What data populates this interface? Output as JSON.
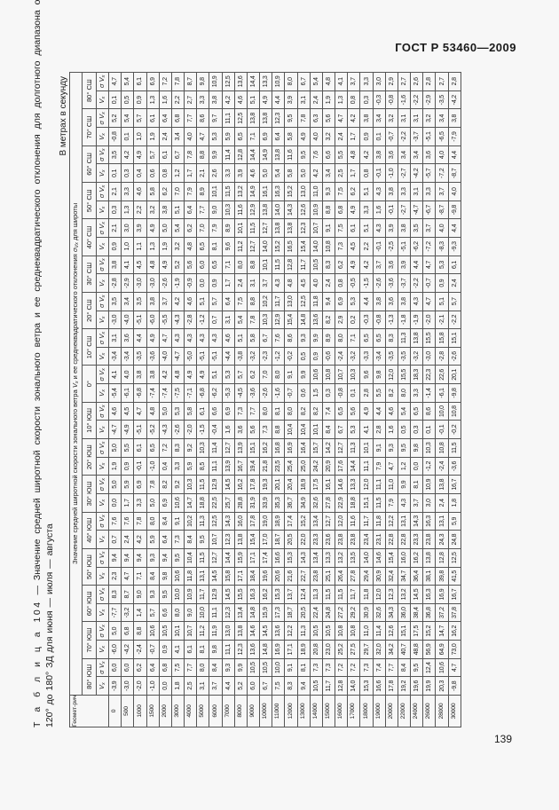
{
  "doc_code": "ГОСТ Р 53460—2009",
  "page_number": "139",
  "table": {
    "title_label": "Т а б л и ц а 104",
    "title_line1": "— Значение средней широтной скорости зонального ветра и ее среднеквадратического отклонения для долготного диапазона от",
    "title_line2": "120° до 180° ЗД для июня — июля — августа",
    "units": "В метрах в секунду",
    "height_header": "Геомет-рическая высота, м",
    "group_header": {
      "part1": "Значение средней широтной скорости зонального ветра ",
      "vx": "V",
      "vx_sub": "x",
      "part2": " и ее среднеквадратического отклонения ",
      "sigma": "σ",
      "sigma_v": "V",
      "sigma_sub": "x",
      "part3": " для широты"
    },
    "sub_headers": {
      "vx": "V",
      "vx_sub": "x",
      "sigma": "σ V",
      "sigma_sub": "x"
    },
    "heights": [
      "0",
      "500",
      "1000",
      "1500",
      "2000",
      "3000",
      "4000",
      "5000",
      "6000",
      "7000",
      "8000",
      "9000",
      "10000",
      "11000",
      "12000",
      "13000",
      "14000",
      "15000",
      "16000",
      "17000",
      "18000",
      "19000",
      "20000",
      "22000",
      "24000",
      "26000",
      "28000",
      "30000"
    ],
    "columns": [
      {
        "latitude": "80° ЮШ",
        "vx": [
          -3.9,
          -3.0,
          -2.0,
          -1.0,
          0.0,
          1.8,
          2.5,
          3.1,
          3.7,
          4.4,
          5.2,
          6.0,
          6.7,
          7.5,
          8.3,
          9.4,
          10.5,
          11.7,
          12.8,
          14.0,
          15.3,
          16.6,
          17.8,
          19.2,
          19.6,
          19.9,
          20.3,
          -9.8
        ],
        "sigma": [
          6.0,
          6.0,
          6.2,
          6.4,
          6.8,
          7.5,
          7.7,
          8.0,
          8.4,
          9.3,
          9.9,
          10.5,
          10.5,
          10.0,
          9.1,
          8.1,
          7.3,
          7.3,
          7.2,
          7.2,
          7.3,
          7.4,
          7.7,
          8.4,
          9.5,
          12.4,
          10.6,
          4.7
        ]
      },
      {
        "latitude": "70° ЮШ",
        "vx": [
          -6.0,
          -4.2,
          -2.4,
          -0.7,
          0.9,
          4.1,
          6.1,
          8.1,
          9.8,
          11.1,
          12.3,
          13.6,
          14.8,
          16.9,
          17.1,
          18.9,
          20.8,
          23.0,
          25.2,
          27.5,
          29.7,
          32.0,
          34.2,
          40.7,
          48.8,
          56.9,
          64.9,
          73.0
        ],
        "sigma": [
          5.0,
          6.8,
          8.8,
          10.6,
          10.5,
          10.1,
          10.7,
          11.2,
          11.9,
          13.0,
          13.8,
          14.6,
          14.5,
          13.6,
          12.2,
          11.3,
          10.5,
          10.5,
          10.8,
          10.8,
          11.0,
          11.4,
          12.6,
          15.1,
          17.5,
          15.2,
          14.7,
          16.2
        ]
      },
      {
        "latitude": "60° ЮШ",
        "vx": [
          -7.7,
          -3.2,
          1.4,
          5.7,
          6.6,
          8.0,
          9.0,
          10.0,
          11.1,
          12.3,
          13.4,
          14.8,
          15.9,
          17.3,
          18.7,
          20.5,
          22.4,
          24.8,
          27.2,
          29.2,
          30.9,
          32.6,
          34.3,
          36.0,
          38.4,
          36.8,
          37.2,
          37.8
        ],
        "sigma": [
          8.3,
          8.7,
          9.0,
          9.3,
          9.5,
          10.0,
          10.9,
          11.7,
          12.9,
          14.5,
          15.5,
          16.3,
          16.2,
          15.3,
          13.7,
          12.4,
          11.3,
          11.5,
          11.5,
          11.7,
          11.8,
          12.0,
          12.3,
          13.2,
          14.5,
          16.3,
          16.9,
          16.7
        ]
      },
      {
        "latitude": "50° ЮШ",
        "vx": [
          2.3,
          4.7,
          7.1,
          8.4,
          9.8,
          10.6,
          11.8,
          13.1,
          14.5,
          15.8,
          17.1,
          18.4,
          19.6,
          20.6,
          21.6,
          22.7,
          23.8,
          25.1,
          26.4,
          27.8,
          29.4,
          30.9,
          32.4,
          34.7,
          36.4,
          38.1,
          39.8,
          41.5
        ],
        "sigma": [
          9.4,
          9.4,
          9.4,
          9.3,
          9.4,
          9.5,
          10.4,
          11.5,
          12.7,
          14.4,
          15.9,
          17.1,
          17.4,
          16.6,
          15.3,
          14.3,
          13.4,
          13.3,
          13.2,
          13.5,
          14.0,
          14.6,
          15.4,
          16.0,
          16.2,
          13.8,
          12.8,
          12.5
        ]
      },
      {
        "latitude": "40° ЮШ",
        "vx": [
          0.7,
          2.4,
          4.2,
          5.9,
          6.4,
          7.3,
          8.4,
          9.5,
          10.7,
          12.3,
          13.8,
          15.4,
          17.0,
          18.7,
          20.5,
          22.0,
          23.3,
          23.6,
          23.8,
          23.8,
          23.4,
          23.1,
          22.8,
          22.8,
          23.3,
          23.8,
          24.3,
          24.8
        ],
        "sigma": [
          7.6,
          7.6,
          7.8,
          8.0,
          8.4,
          9.1,
          10.2,
          11.3,
          12.5,
          14.3,
          16.0,
          17.8,
          19.0,
          18.9,
          17.4,
          15.2,
          13.4,
          12.7,
          12.0,
          11.6,
          11.7,
          11.8,
          12.2,
          13.1,
          14.3,
          16.3,
          13.1,
          5.9
        ]
      },
      {
        "latitude": "30° ЮШ",
        "vx": [
          0.0,
          1.7,
          3.3,
          5.0,
          6.9,
          10.6,
          14.7,
          18.8,
          22.5,
          25.7,
          28.8,
          31.9,
          33.9,
          35.3,
          36.7,
          34.9,
          32.6,
          27.8,
          22.9,
          18.8,
          15.1,
          11.5,
          7.9,
          4.3,
          3.7,
          3.0,
          2.4,
          1.8
        ],
        "sigma": [
          5.0,
          5.9,
          6.9,
          7.8,
          8.2,
          9.2,
          10.3,
          11.5,
          12.9,
          14.5,
          16.2,
          17.8,
          19.3,
          20.1,
          20.4,
          18.9,
          17.5,
          16.1,
          14.6,
          13.3,
          12.0,
          11.1,
          11.0,
          9.9,
          8.1,
          10.9,
          13.8,
          16.7
        ]
      },
      {
        "latitude": "20° ЮШ",
        "vx": [
          1.9,
          0.9,
          -0.1,
          -1.0,
          0.4,
          3.3,
          5.9,
          8.5,
          11.1,
          13.9,
          16.7,
          19.4,
          21.8,
          23.5,
          25.4,
          25.0,
          24.2,
          20.9,
          17.6,
          14.4,
          11.1,
          7.9,
          4.7,
          1.2,
          0.0,
          -1.2,
          -2.4,
          -3.6
        ],
        "sigma": [
          5.0,
          5.5,
          6.1,
          6.5,
          7.2,
          8.3,
          9.2,
          10.3,
          11.4,
          12.7,
          13.9,
          15.1,
          16.2,
          16.8,
          16.9,
          16.4,
          15.7,
          14.2,
          12.7,
          11.3,
          10.1,
          9.1,
          9.3,
          9.5,
          9.8,
          10.3,
          10.8,
          11.5
        ]
      },
      {
        "latitude": "10° ЮШ",
        "vx": [
          -4.7,
          -4.9,
          -5.1,
          -5.2,
          -4.3,
          -2.6,
          -2.0,
          -1.5,
          -0.4,
          1.6,
          3.6,
          5.6,
          7.3,
          8.8,
          10.4,
          10.4,
          10.1,
          8.4,
          6.7,
          5.3,
          4.1,
          2.8,
          1.6,
          0.5,
          0.3,
          0.1,
          -0.1,
          -0.2
        ],
        "sigma": [
          4.6,
          4.5,
          4.7,
          4.8,
          5.0,
          5.3,
          5.8,
          6.1,
          6.6,
          6.9,
          7.3,
          7.7,
          8.0,
          8.1,
          8.0,
          8.2,
          8.2,
          7.4,
          6.5,
          5.6,
          4.9,
          4.4,
          4.6,
          5.4,
          6.5,
          8.6,
          10.0,
          10.8
        ]
      },
      {
        "latitude": "0°",
        "vx": [
          -5.4,
          -6.1,
          -6.8,
          -7.4,
          -7.4,
          -7.5,
          -7.1,
          -6.8,
          -6.2,
          -5.3,
          -4.5,
          -3.6,
          -2.6,
          -1.6,
          -0.7,
          0.6,
          1.5,
          0.3,
          -0.8,
          0.1,
          2.8,
          5.5,
          8.2,
          8.0,
          3.3,
          -1.4,
          -6.1,
          -9.8
        ],
        "sigma": [
          4.1,
          4.0,
          3.8,
          3.8,
          4.2,
          4.8,
          4.9,
          4.9,
          5.1,
          5.3,
          5.7,
          6.2,
          7.0,
          8.0,
          9.1,
          9.9,
          10.6,
          10.8,
          10.7,
          10.3,
          9.6,
          9.8,
          12.0,
          15.5,
          18.3,
          22.3,
          22.6,
          20.1
        ]
      },
      {
        "latitude": "10° СШ",
        "vx": [
          -3.4,
          -3.4,
          -3.5,
          -3.6,
          -4.0,
          -4.7,
          -5.0,
          -5.1,
          -5.1,
          -4.4,
          -3.8,
          -3.2,
          -2.3,
          -1.2,
          -0.2,
          0.5,
          0.9,
          -0.6,
          -2.4,
          -3.2,
          -3.3,
          -3.4,
          -3.5,
          -3.5,
          -3.2,
          -3.0,
          -2.8,
          -2.6
        ],
        "sigma": [
          3.1,
          3.6,
          4.4,
          4.9,
          4.7,
          4.3,
          4.3,
          4.3,
          4.3,
          4.6,
          5.1,
          5.8,
          6.7,
          7.6,
          8.6,
          9.3,
          9.9,
          8.9,
          8.0,
          7.1,
          6.5,
          6.5,
          8.3,
          11.3,
          13.8,
          15.5,
          15.8,
          15.1
        ]
      },
      {
        "latitude": "20° СШ",
        "vx": [
          -3.0,
          -4.0,
          -5.1,
          -6.0,
          -5.5,
          -4.3,
          -2.8,
          -1.2,
          0.7,
          3.1,
          5.4,
          7.8,
          10.3,
          12.9,
          15.4,
          14.8,
          13.6,
          8.2,
          2.9,
          0.2,
          -0.3,
          -0.8,
          -1.3,
          -1.8,
          -1.9,
          -2.0,
          -2.1,
          -2.2
        ],
        "sigma": [
          3.5,
          3.4,
          3.5,
          3.8,
          3.7,
          4.2,
          4.6,
          5.1,
          5.7,
          6.4,
          7.5,
          8.8,
          10.2,
          11.7,
          13.0,
          12.5,
          11.8,
          9.4,
          6.9,
          5.3,
          4.4,
          3.8,
          3.6,
          3.8,
          4.3,
          4.7,
          5.1,
          5.7
        ]
      },
      {
        "latitude": "30° СШ",
        "vx": [
          -2.8,
          -2.9,
          -3.0,
          -3.0,
          -2.6,
          -1.9,
          -0.9,
          0.0,
          0.9,
          1.7,
          2.4,
          3.1,
          3.7,
          4.3,
          4.8,
          4.5,
          4.0,
          2.4,
          0.8,
          -0.5,
          -1.5,
          -2.6,
          -3.6,
          -3.7,
          -2.2,
          -0.7,
          0.9,
          2.4
        ],
        "sigma": [
          3.8,
          4.1,
          4.5,
          4.8,
          4.9,
          5.2,
          5.6,
          6.0,
          6.5,
          7.1,
          8.0,
          8.8,
          10.1,
          11.5,
          12.8,
          11.7,
          10.5,
          8.3,
          6.2,
          4.9,
          4.2,
          3.7,
          3.6,
          3.9,
          4.4,
          4.7,
          5.3,
          6.1
        ]
      },
      {
        "latitude": "40° СШ",
        "vx": [
          0.9,
          1.0,
          1.1,
          1.3,
          1.9,
          3.2,
          4.8,
          6.5,
          8.1,
          9.6,
          11.2,
          12.7,
          14.0,
          15.2,
          16.5,
          15.4,
          14.0,
          10.8,
          7.3,
          4.5,
          2.2,
          -0.1,
          -2.5,
          -5.1,
          -6.2,
          -7.2,
          -8.3,
          -9.3
        ],
        "sigma": [
          2.1,
          3.0,
          3.9,
          4.9,
          5.0,
          5.4,
          6.2,
          7.0,
          7.9,
          8.9,
          10.1,
          11.5,
          12.7,
          13.8,
          13.8,
          12.3,
          10.7,
          9.1,
          7.5,
          6.1,
          5.1,
          4.3,
          3.9,
          3.8,
          3.5,
          3.7,
          4.0,
          4.4
        ]
      },
      {
        "latitude": "50° СШ",
        "vx": [
          0.3,
          1.3,
          2.2,
          3.2,
          3.8,
          5.1,
          6.4,
          7.7,
          9.0,
          10.3,
          11.6,
          12.9,
          13.8,
          14.0,
          14.3,
          12.6,
          10.9,
          8.8,
          6.8,
          4.9,
          3.3,
          1.6,
          -0.1,
          -2.7,
          -4.7,
          -6.7,
          -8.7,
          -9.8
        ],
        "sigma": [
          2.1,
          3.3,
          4.6,
          5.8,
          6.2,
          7.0,
          7.9,
          8.9,
          10.1,
          11.5,
          13.2,
          14.9,
          16.1,
          16.3,
          15.2,
          13.0,
          11.0,
          9.3,
          7.5,
          6.2,
          5.1,
          4.3,
          3.8,
          3.3,
          3.1,
          3.3,
          3.7,
          4.0
        ]
      },
      {
        "latitude": "60° СШ",
        "vx": [
          0.1,
          0.3,
          0.4,
          0.6,
          0.8,
          1.2,
          1.7,
          2.1,
          2.6,
          3.3,
          3.9,
          4.6,
          5.0,
          5.4,
          5.8,
          5.0,
          4.2,
          3.4,
          2.5,
          1.7,
          0.8,
          -0.1,
          -1.0,
          -2.7,
          -4.2,
          -5.7,
          -7.2,
          -8.7
        ],
        "sigma": [
          3.5,
          4.2,
          4.9,
          5.7,
          6.1,
          6.7,
          7.8,
          8.8,
          9.9,
          11.4,
          12.8,
          14.4,
          14.9,
          13.8,
          11.6,
          9.5,
          7.6,
          6.6,
          5.5,
          4.8,
          4.2,
          3.8,
          3.6,
          3.4,
          3.4,
          3.6,
          4.0,
          4.4
        ]
      },
      {
        "latitude": "70° СШ",
        "vx": [
          -0.8,
          0.1,
          1.0,
          1.9,
          2.4,
          3.4,
          4.0,
          4.7,
          5.3,
          5.9,
          6.5,
          7.1,
          6.9,
          6.4,
          5.8,
          4.9,
          4.0,
          3.2,
          2.4,
          1.7,
          0.9,
          0.1,
          -0.7,
          -2.2,
          -3.7,
          -5.1,
          -6.5,
          -7.9
        ],
        "sigma": [
          5.2,
          5.4,
          5.7,
          6.1,
          6.4,
          6.8,
          7.7,
          8.6,
          9.7,
          11.1,
          12.5,
          13.8,
          13.8,
          12.3,
          9.5,
          7.8,
          6.3,
          5.6,
          4.7,
          4.2,
          3.8,
          3.4,
          3.2,
          3.1,
          3.1,
          3.2,
          3.4,
          3.8
        ]
      },
      {
        "latitude": "80° СШ",
        "vx": [
          0.1,
          0.5,
          0.9,
          1.3,
          1.6,
          2.2,
          2.7,
          3.3,
          3.8,
          4.2,
          4.6,
          5.1,
          4.9,
          4.4,
          3.9,
          3.1,
          2.4,
          1.9,
          1.3,
          0.8,
          0.3,
          -0.3,
          -0.8,
          -1.6,
          -2.2,
          -2.9,
          -3.5,
          -4.2
        ],
        "sigma": [
          4.7,
          5.4,
          6.1,
          6.9,
          7.2,
          7.8,
          8.7,
          9.8,
          10.9,
          12.5,
          13.6,
          14.4,
          13.3,
          10.9,
          8.0,
          6.7,
          5.4,
          4.8,
          4.1,
          3.7,
          3.3,
          3.0,
          2.9,
          2.7,
          2.6,
          2.8,
          2.7,
          2.8
        ]
      }
    ]
  }
}
